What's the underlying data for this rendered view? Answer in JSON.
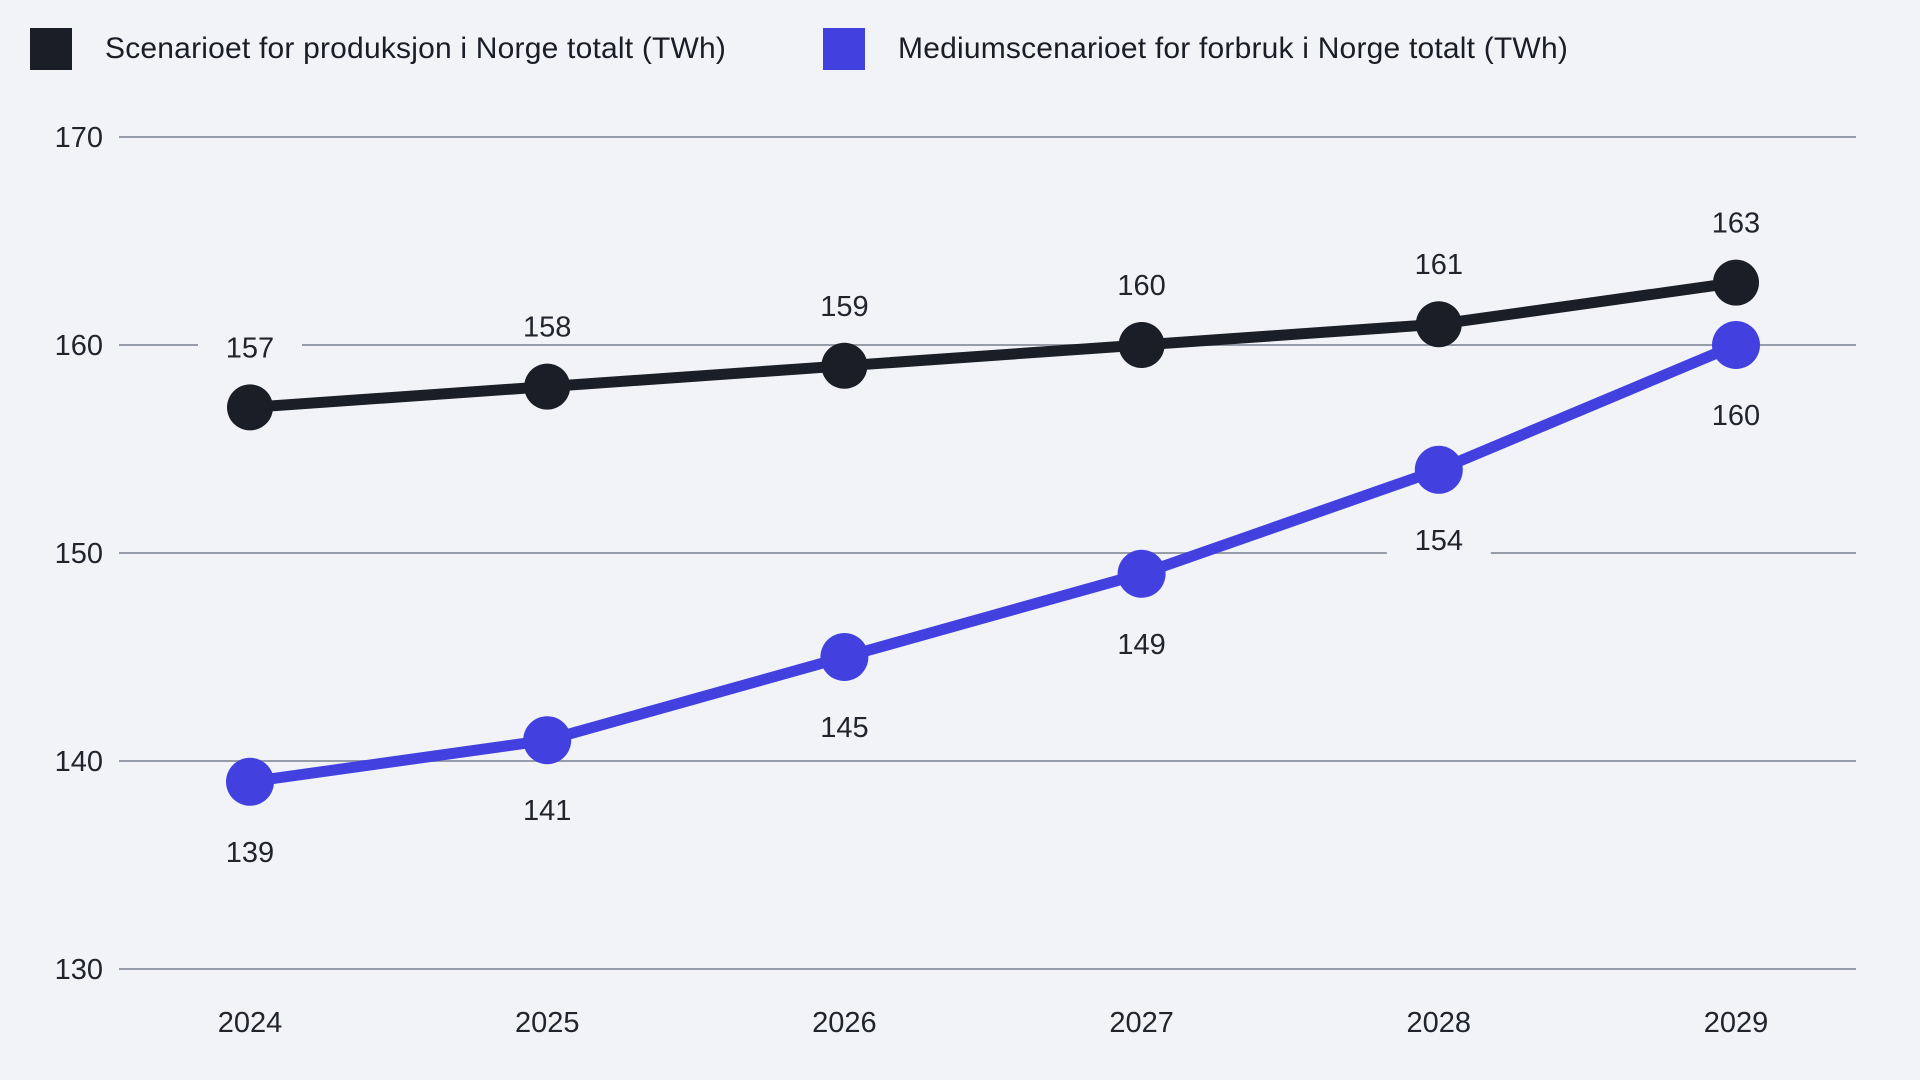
{
  "legend": {
    "items": [
      {
        "label": "Scenarioet for produksjon i Norge totalt (TWh)",
        "color": "#1a1e27"
      },
      {
        "label": "Mediumscenarioet for forbruk i Norge totalt (TWh)",
        "color": "#4241e0"
      }
    ]
  },
  "chart_data": {
    "type": "line",
    "title": "",
    "xlabel": "",
    "ylabel": "",
    "categories": [
      "2024",
      "2025",
      "2026",
      "2027",
      "2028",
      "2029"
    ],
    "series": [
      {
        "name": "Scenarioet for produksjon i Norge totalt (TWh)",
        "color": "#1a1e27",
        "values": [
          157,
          158,
          159,
          160,
          161,
          163
        ],
        "data_labels": [
          "157",
          "158",
          "159",
          "160",
          "161",
          "163"
        ],
        "label_position": "above",
        "point_radius": 23
      },
      {
        "name": "Mediumscenarioet for forbruk i Norge totalt (TWh)",
        "color": "#4241e0",
        "values": [
          139,
          141,
          145,
          149,
          154,
          160
        ],
        "data_labels": [
          "139",
          "141",
          "145",
          "149",
          "154",
          "160"
        ],
        "label_position": "below",
        "point_radius": 24
      }
    ],
    "y_axis": {
      "ticks": [
        170,
        160,
        150,
        140,
        130
      ],
      "min": 130,
      "max": 170
    },
    "grid": true,
    "legend_position": "top",
    "background": "#f2f3f7",
    "gridline_color": "#969da8",
    "text_color": "#21242c"
  }
}
